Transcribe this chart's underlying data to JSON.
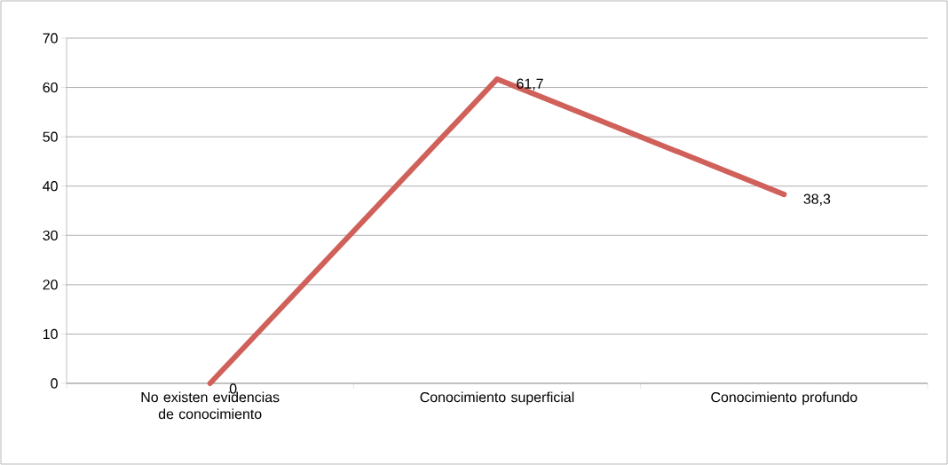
{
  "chart_data": {
    "type": "line",
    "categories": [
      "No existen evidencias de conocimiento",
      "Conocimiento superficial",
      "Conocimiento profundo"
    ],
    "series": [
      {
        "color": "#d0605a",
        "values": [
          0,
          61.7,
          38.3
        ],
        "value_labels": [
          "0",
          "61,7",
          "38,3"
        ]
      }
    ],
    "ylim": [
      0,
      70
    ],
    "yticks": [
      0,
      10,
      20,
      30,
      40,
      50,
      60,
      70
    ],
    "grid": "y",
    "legend": false,
    "marker": "none",
    "line_style": "solid"
  }
}
